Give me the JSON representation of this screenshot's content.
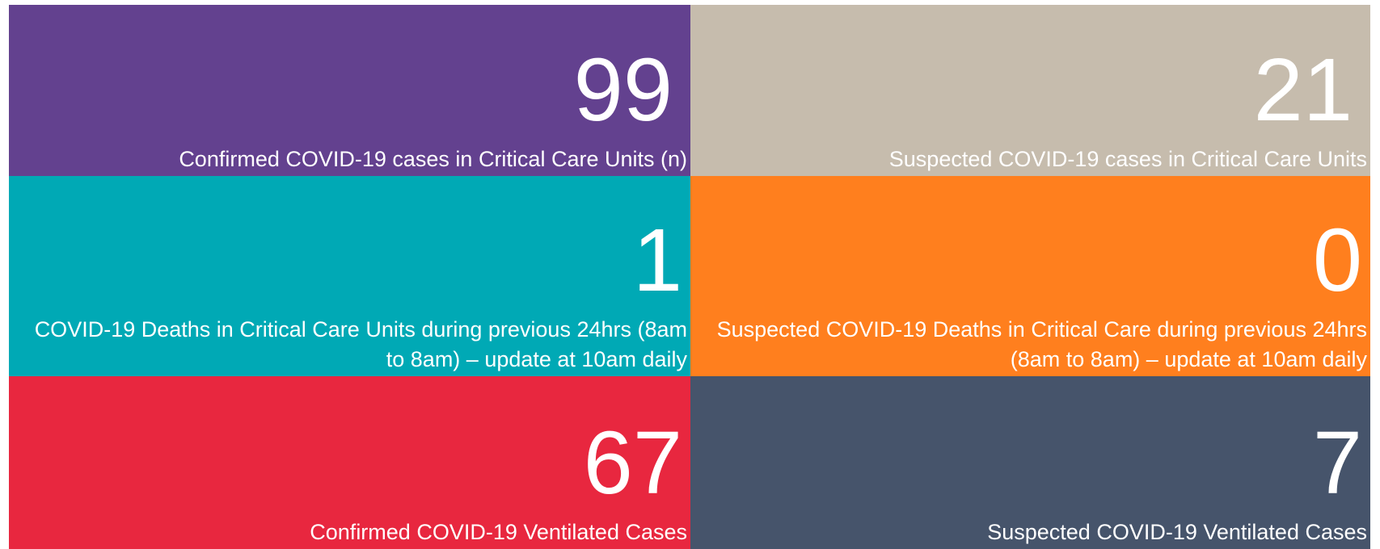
{
  "tiles": [
    {
      "value": "99",
      "label": "Confirmed COVID-19 cases in Critical Care Units (n)",
      "color": "#63418f"
    },
    {
      "value": "21",
      "label": "Suspected COVID-19 cases in Critical Care Units",
      "color": "#c6bcad"
    },
    {
      "value": "1",
      "label": "COVID-19 Deaths in Critical Care Units during previous 24hrs (8am to 8am) – update at 10am daily",
      "color": "#00a9b5"
    },
    {
      "value": "0",
      "label": "Suspected COVID-19 Deaths in Critical Care during previous 24hrs (8am to 8am) – update at 10am daily",
      "color": "#ff7f1e"
    },
    {
      "value": "67",
      "label": "Confirmed COVID-19 Ventilated Cases",
      "color": "#e8273f"
    },
    {
      "value": "7",
      "label": "Suspected COVID-19 Ventilated Cases",
      "color": "#46546b"
    }
  ]
}
